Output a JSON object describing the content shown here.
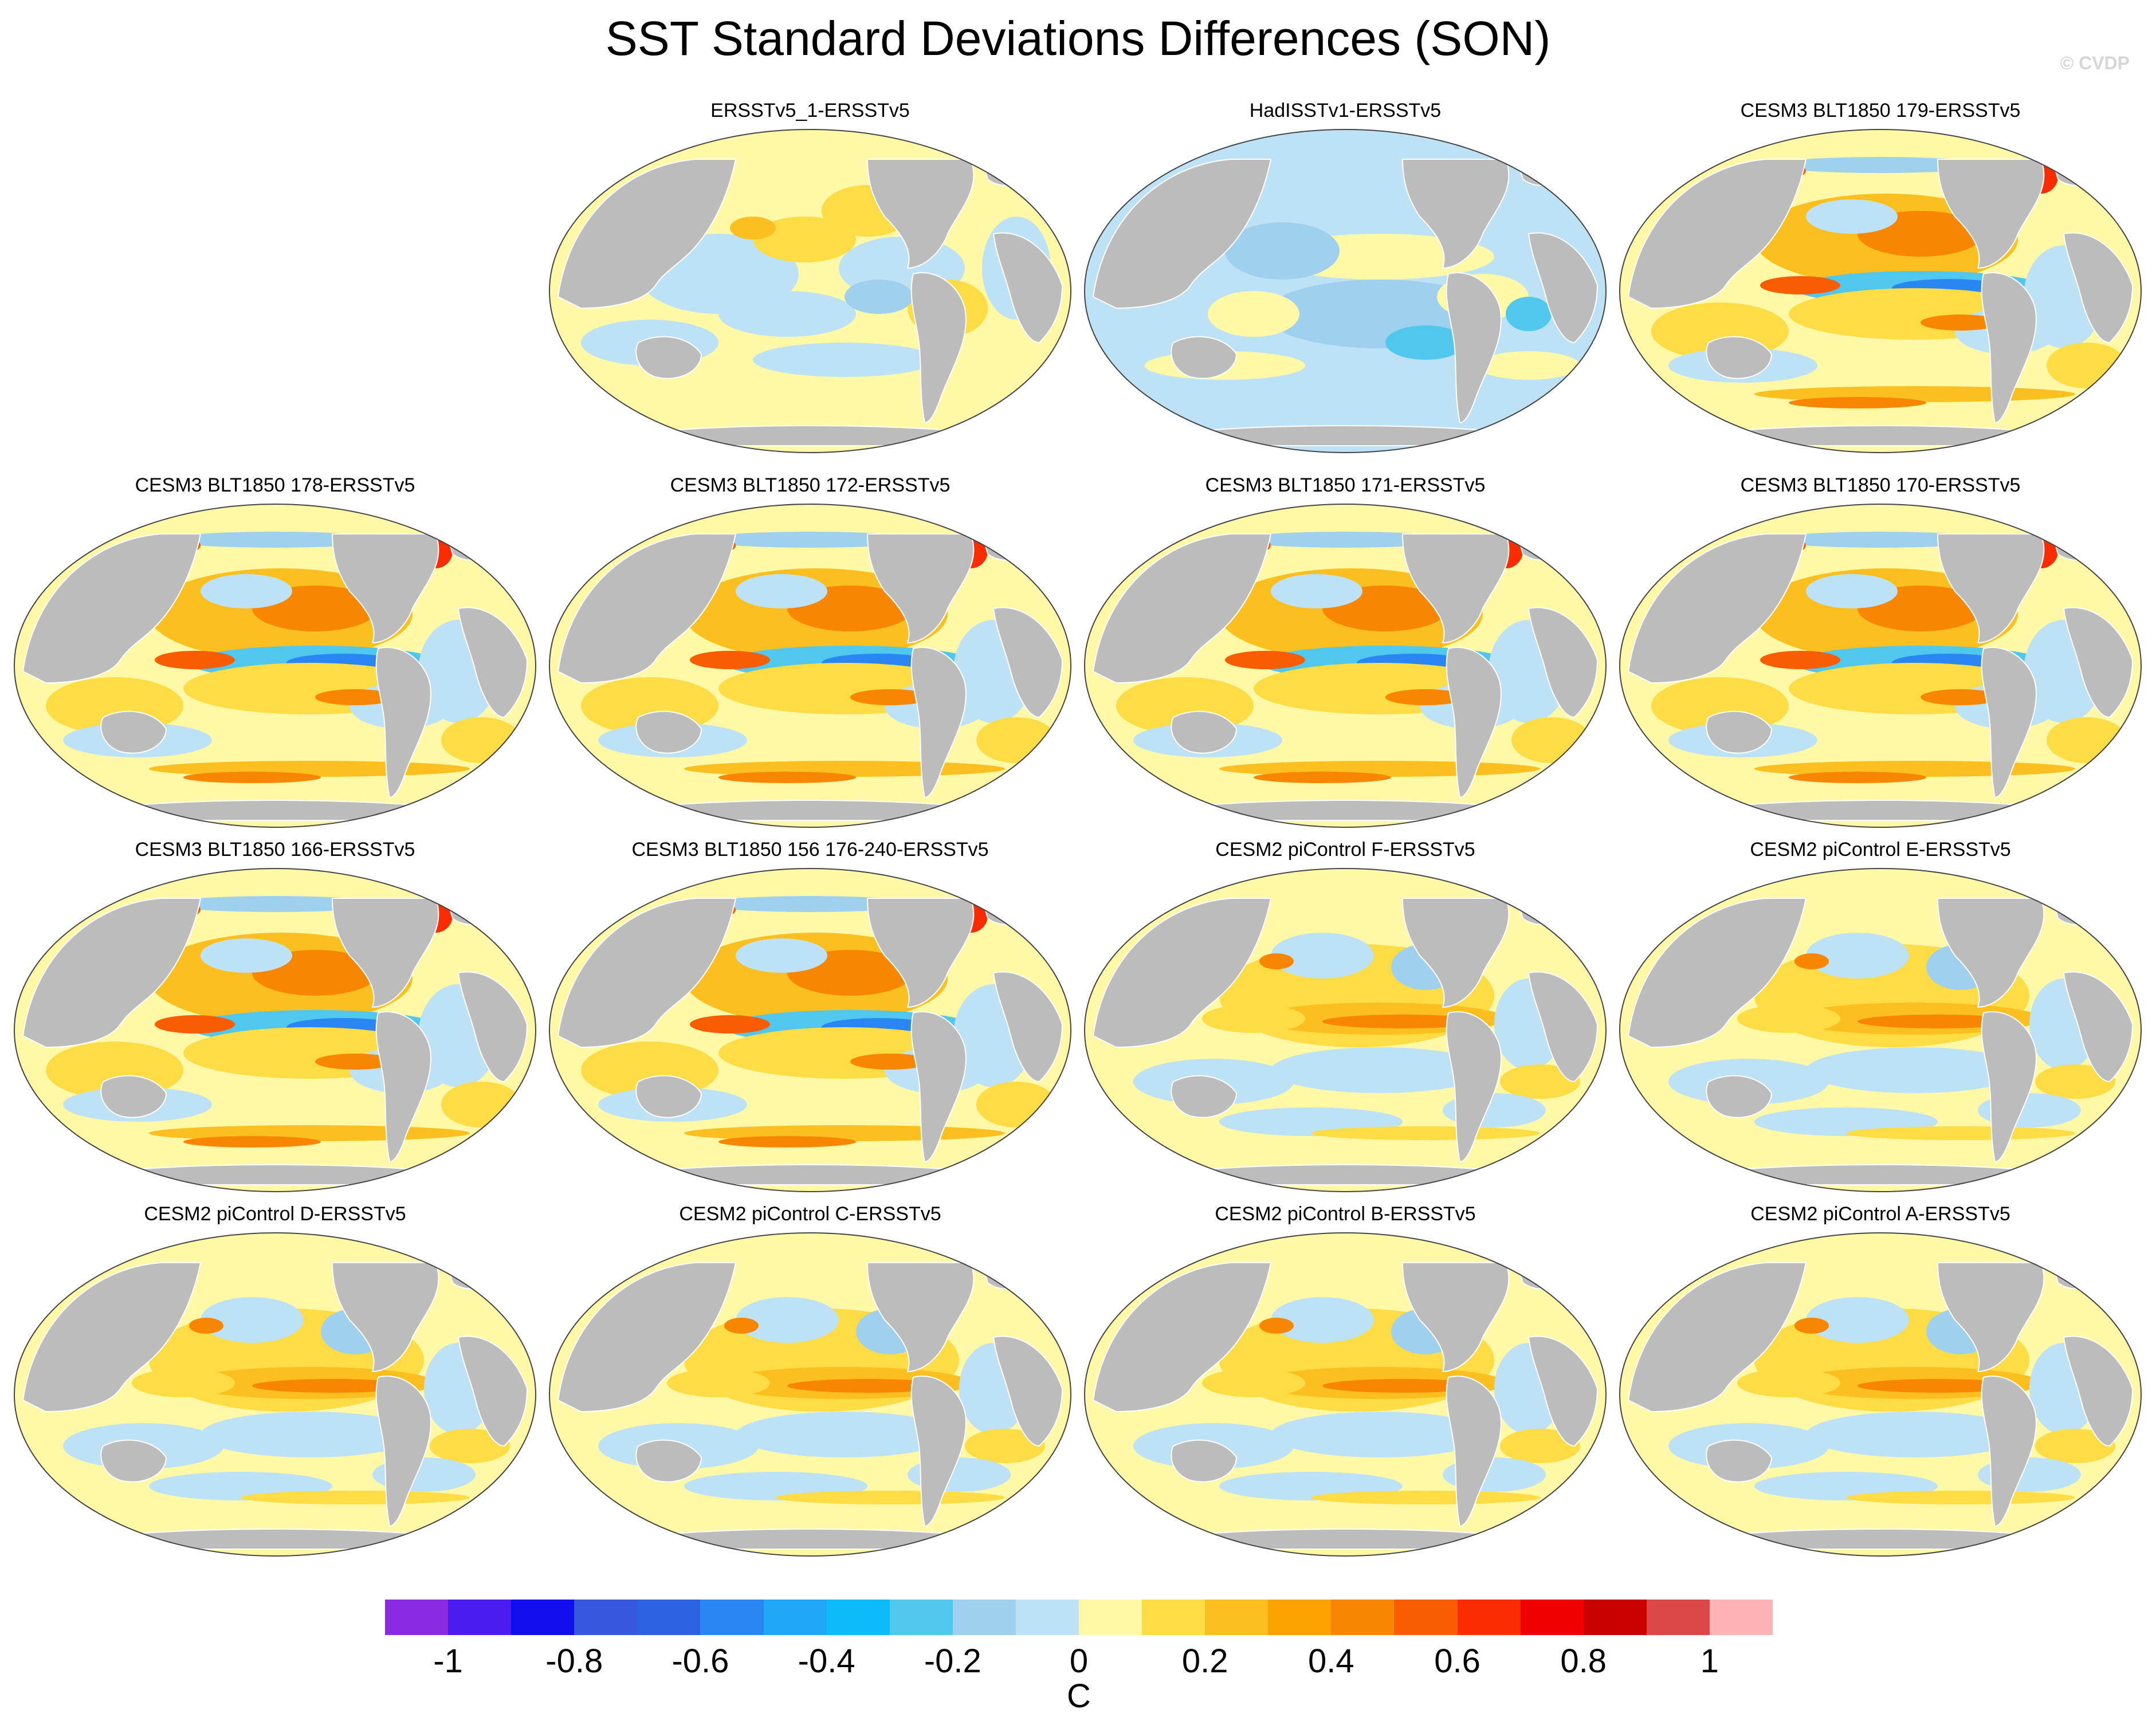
{
  "title": "SST Standard Deviations Differences (SON)",
  "copyright": "© CVDP",
  "colorbar": {
    "unit": "C",
    "colors": [
      "#8a2be2",
      "#4b1cf0",
      "#0f0fee",
      "#3558dc",
      "#2c62e2",
      "#2a86f2",
      "#1fa6f5",
      "#0bbcf8",
      "#50c8ee",
      "#9fd0ee",
      "#bde2f6",
      "#fff8a6",
      "#fddc45",
      "#fbc020",
      "#f9a200",
      "#f98600",
      "#fa5c00",
      "#fb2c00",
      "#f00000",
      "#c80000",
      "#dc4848",
      "#ffb4b4"
    ],
    "tick_labels": [
      "-1",
      "-0.8",
      "-0.6",
      "-0.4",
      "-0.2",
      "0",
      "0.2",
      "0.4",
      "0.6",
      "0.8",
      "1"
    ]
  },
  "panels": [
    {
      "title": "ERSSTv5_1-ERSSTv5",
      "pattern": "obs"
    },
    {
      "title": "HadISSTv1-ERSSTv5",
      "pattern": "had"
    },
    {
      "title": "CESM3 BLT1850 179-ERSSTv5",
      "pattern": "cesm3"
    },
    {
      "title": "CESM3 BLT1850 178-ERSSTv5",
      "pattern": "cesm3"
    },
    {
      "title": "CESM3 BLT1850 172-ERSSTv5",
      "pattern": "cesm3"
    },
    {
      "title": "CESM3 BLT1850 171-ERSSTv5",
      "pattern": "cesm3"
    },
    {
      "title": "CESM3 BLT1850 170-ERSSTv5",
      "pattern": "cesm3"
    },
    {
      "title": "CESM3 BLT1850 166-ERSSTv5",
      "pattern": "cesm3"
    },
    {
      "title": "CESM3 BLT1850 156 176-240-ERSSTv5",
      "pattern": "cesm3"
    },
    {
      "title": "CESM2 piControl F-ERSSTv5",
      "pattern": "cesm2"
    },
    {
      "title": "CESM2 piControl E-ERSSTv5",
      "pattern": "cesm2"
    },
    {
      "title": "CESM2 piControl D-ERSSTv5",
      "pattern": "cesm2"
    },
    {
      "title": "CESM2 piControl C-ERSSTv5",
      "pattern": "cesm2"
    },
    {
      "title": "CESM2 piControl B-ERSSTv5",
      "pattern": "cesm2"
    },
    {
      "title": "CESM2 piControl A-ERSSTv5",
      "pattern": "cesm2"
    }
  ]
}
